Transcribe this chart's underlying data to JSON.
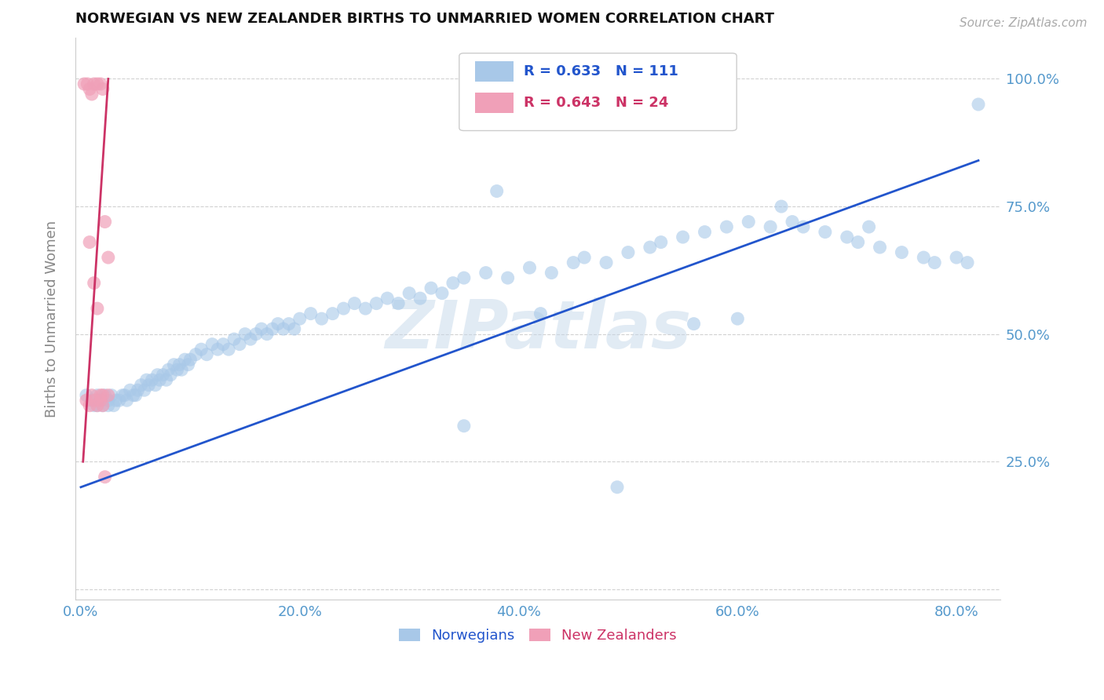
{
  "title": "NORWEGIAN VS NEW ZEALANDER BIRTHS TO UNMARRIED WOMEN CORRELATION CHART",
  "source": "Source: ZipAtlas.com",
  "ylabel": "Births to Unmarried Women",
  "blue_R": 0.633,
  "blue_N": 111,
  "pink_R": 0.643,
  "pink_N": 24,
  "blue_color": "#a8c8e8",
  "pink_color": "#f0a0b8",
  "blue_line_color": "#2255cc",
  "pink_line_color": "#cc3366",
  "watermark": "ZIPatlas",
  "title_color": "#111111",
  "axis_label_color": "#888888",
  "tick_color": "#5599cc",
  "grid_color": "#cccccc",
  "xlim_min": -0.005,
  "xlim_max": 0.84,
  "ylim_min": -0.02,
  "ylim_max": 1.08,
  "blue_scatter_x": [
    0.005,
    0.01,
    0.012,
    0.015,
    0.015,
    0.018,
    0.02,
    0.02,
    0.022,
    0.025,
    0.025,
    0.028,
    0.03,
    0.032,
    0.035,
    0.038,
    0.04,
    0.042,
    0.045,
    0.048,
    0.05,
    0.052,
    0.055,
    0.058,
    0.06,
    0.062,
    0.065,
    0.068,
    0.07,
    0.072,
    0.075,
    0.078,
    0.08,
    0.082,
    0.085,
    0.088,
    0.09,
    0.092,
    0.095,
    0.098,
    0.1,
    0.105,
    0.11,
    0.115,
    0.12,
    0.125,
    0.13,
    0.135,
    0.14,
    0.145,
    0.15,
    0.155,
    0.16,
    0.165,
    0.17,
    0.175,
    0.18,
    0.185,
    0.19,
    0.195,
    0.2,
    0.21,
    0.22,
    0.23,
    0.24,
    0.25,
    0.26,
    0.27,
    0.28,
    0.29,
    0.3,
    0.31,
    0.32,
    0.33,
    0.34,
    0.35,
    0.37,
    0.39,
    0.41,
    0.43,
    0.45,
    0.46,
    0.48,
    0.5,
    0.52,
    0.53,
    0.55,
    0.57,
    0.59,
    0.61,
    0.63,
    0.65,
    0.66,
    0.68,
    0.7,
    0.71,
    0.73,
    0.75,
    0.77,
    0.78,
    0.8,
    0.81,
    0.82,
    0.56,
    0.42,
    0.38,
    0.35,
    0.6,
    0.64,
    0.72,
    0.49
  ],
  "blue_scatter_y": [
    0.38,
    0.37,
    0.36,
    0.38,
    0.36,
    0.37,
    0.37,
    0.36,
    0.38,
    0.37,
    0.36,
    0.38,
    0.36,
    0.37,
    0.37,
    0.38,
    0.38,
    0.37,
    0.39,
    0.38,
    0.38,
    0.39,
    0.4,
    0.39,
    0.41,
    0.4,
    0.41,
    0.4,
    0.42,
    0.41,
    0.42,
    0.41,
    0.43,
    0.42,
    0.44,
    0.43,
    0.44,
    0.43,
    0.45,
    0.44,
    0.45,
    0.46,
    0.47,
    0.46,
    0.48,
    0.47,
    0.48,
    0.47,
    0.49,
    0.48,
    0.5,
    0.49,
    0.5,
    0.51,
    0.5,
    0.51,
    0.52,
    0.51,
    0.52,
    0.51,
    0.53,
    0.54,
    0.53,
    0.54,
    0.55,
    0.56,
    0.55,
    0.56,
    0.57,
    0.56,
    0.58,
    0.57,
    0.59,
    0.58,
    0.6,
    0.61,
    0.62,
    0.61,
    0.63,
    0.62,
    0.64,
    0.65,
    0.64,
    0.66,
    0.67,
    0.68,
    0.69,
    0.7,
    0.71,
    0.72,
    0.71,
    0.72,
    0.71,
    0.7,
    0.69,
    0.68,
    0.67,
    0.66,
    0.65,
    0.64,
    0.65,
    0.64,
    0.95,
    0.52,
    0.54,
    0.78,
    0.32,
    0.53,
    0.75,
    0.71,
    0.2
  ],
  "pink_scatter_x": [
    0.003,
    0.006,
    0.008,
    0.01,
    0.012,
    0.015,
    0.018,
    0.02,
    0.022,
    0.025,
    0.008,
    0.012,
    0.015,
    0.018,
    0.02,
    0.025,
    0.005,
    0.008,
    0.01,
    0.012,
    0.015,
    0.018,
    0.02,
    0.022
  ],
  "pink_scatter_y": [
    0.99,
    0.99,
    0.98,
    0.97,
    0.99,
    0.99,
    0.99,
    0.98,
    0.72,
    0.65,
    0.68,
    0.6,
    0.55,
    0.38,
    0.38,
    0.38,
    0.37,
    0.36,
    0.38,
    0.37,
    0.36,
    0.37,
    0.36,
    0.22
  ],
  "blue_line_x0": 0.0,
  "blue_line_x1": 0.82,
  "blue_line_y0": 0.2,
  "blue_line_y1": 0.84,
  "pink_line_x0": 0.002,
  "pink_line_x1": 0.025,
  "pink_line_y0": 0.25,
  "pink_line_y1": 1.0
}
